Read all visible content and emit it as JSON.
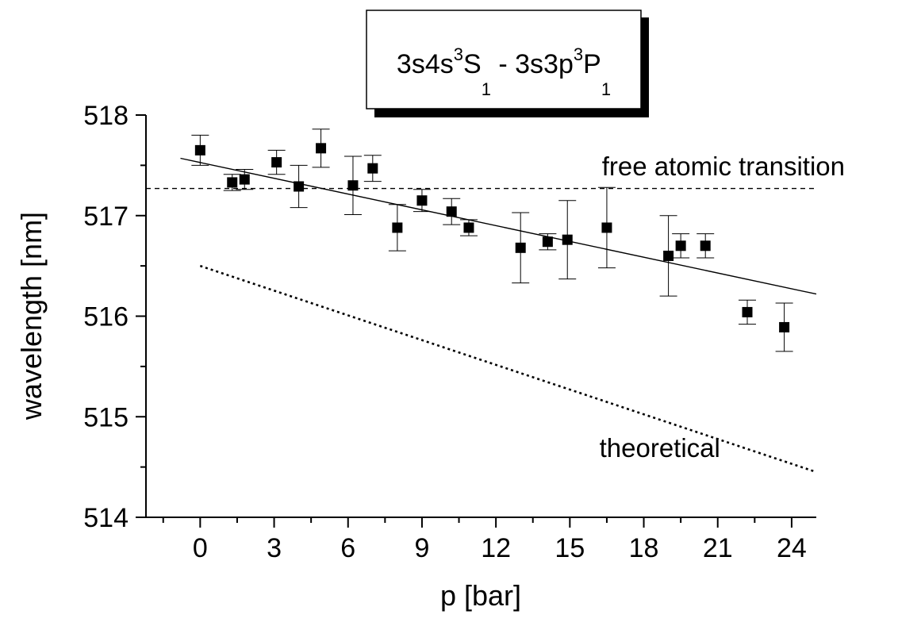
{
  "chart_data": {
    "type": "scatter",
    "title": {
      "parts": [
        {
          "text": "3s4s",
          "style": "normal"
        },
        {
          "text": "3",
          "style": "sup"
        },
        {
          "text": "S",
          "style": "normal"
        },
        {
          "text": "1",
          "style": "sub"
        },
        {
          "text": " - 3s3p",
          "style": "normal"
        },
        {
          "text": "3",
          "style": "sup"
        },
        {
          "text": "P",
          "style": "normal"
        },
        {
          "text": "1",
          "style": "sub"
        }
      ]
    },
    "xlabel": "p [bar]",
    "ylabel": "wavelength [nm]",
    "xlim": [
      -2.2,
      25
    ],
    "ylim": [
      514,
      518
    ],
    "xticks": [
      0,
      3,
      6,
      9,
      12,
      15,
      18,
      21,
      24
    ],
    "xtick_labels": [
      "0",
      "3",
      "6",
      "9",
      "12",
      "15",
      "18",
      "21",
      "24"
    ],
    "yticks": [
      514,
      515,
      516,
      517,
      518
    ],
    "ytick_labels": [
      "514",
      "515",
      "516",
      "517",
      "518"
    ],
    "grid": false,
    "series": [
      {
        "kind": "points_with_errorbars",
        "marker": "square",
        "points": [
          {
            "x": 0.0,
            "y": 517.65,
            "err": 0.15
          },
          {
            "x": 1.3,
            "y": 517.33,
            "err": 0.08
          },
          {
            "x": 1.8,
            "y": 517.36,
            "err": 0.1
          },
          {
            "x": 3.1,
            "y": 517.53,
            "err": 0.12
          },
          {
            "x": 4.0,
            "y": 517.29,
            "err": 0.21
          },
          {
            "x": 4.9,
            "y": 517.67,
            "err": 0.19
          },
          {
            "x": 6.2,
            "y": 517.3,
            "err": 0.29
          },
          {
            "x": 7.0,
            "y": 517.47,
            "err": 0.13
          },
          {
            "x": 8.0,
            "y": 516.88,
            "err": 0.23
          },
          {
            "x": 9.0,
            "y": 517.15,
            "err": 0.11
          },
          {
            "x": 10.2,
            "y": 517.04,
            "err": 0.13
          },
          {
            "x": 10.9,
            "y": 516.88,
            "err": 0.08
          },
          {
            "x": 13.0,
            "y": 516.68,
            "err": 0.35
          },
          {
            "x": 14.1,
            "y": 516.74,
            "err": 0.08
          },
          {
            "x": 14.9,
            "y": 516.76,
            "err": 0.39
          },
          {
            "x": 16.5,
            "y": 516.88,
            "err": 0.4
          },
          {
            "x": 19.0,
            "y": 516.6,
            "err": 0.4
          },
          {
            "x": 19.5,
            "y": 516.7,
            "err": 0.12
          },
          {
            "x": 20.5,
            "y": 516.7,
            "err": 0.12
          },
          {
            "x": 22.2,
            "y": 516.04,
            "err": 0.12
          },
          {
            "x": 23.7,
            "y": 515.89,
            "err": 0.24
          }
        ]
      },
      {
        "kind": "line",
        "style": "solid",
        "x": [
          -0.8,
          25
        ],
        "y": [
          517.57,
          516.22
        ]
      },
      {
        "kind": "line",
        "style": "dashed",
        "x": [
          -2.2,
          25
        ],
        "y": [
          517.27,
          517.27
        ]
      },
      {
        "kind": "line",
        "style": "dotted",
        "x": [
          0,
          25
        ],
        "y": [
          516.5,
          514.45
        ]
      }
    ],
    "annotations": [
      {
        "text": "free atomic transition",
        "x": 16.3,
        "y": 517.4
      },
      {
        "text": "theoretical",
        "x": 16.2,
        "y": 514.6
      }
    ]
  }
}
